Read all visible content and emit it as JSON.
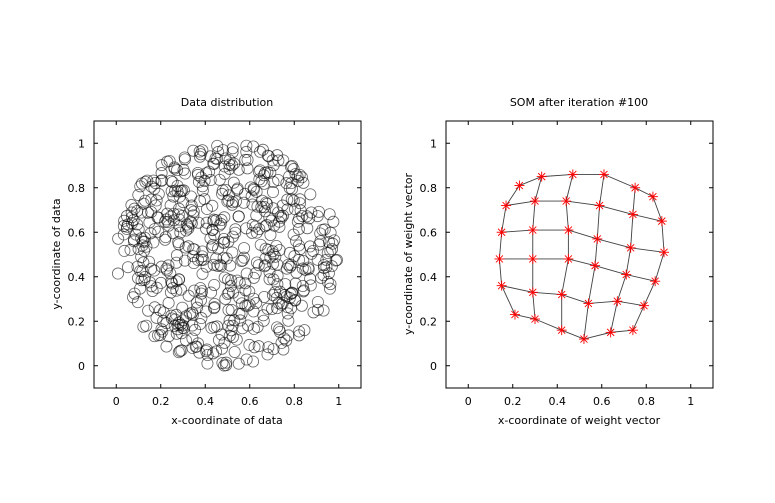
{
  "chart_data": [
    {
      "type": "scatter",
      "title": "Data distribution",
      "xlabel": "x-coordinate of data",
      "ylabel": "y-coordinate of data",
      "xlim": [
        -0.1,
        1.1
      ],
      "ylim": [
        -0.1,
        1.1
      ],
      "xticks": [
        "0",
        "0.2",
        "0.4",
        "0.6",
        "0.8",
        "1"
      ],
      "yticks": [
        "0",
        "0.2",
        "0.4",
        "0.6",
        "0.8",
        "1"
      ],
      "marker": "open-circle",
      "color": "#000000",
      "series": [
        {
          "name": "data",
          "distribution": "uniform disk",
          "center": [
            0.5,
            0.5
          ],
          "radius": 0.5,
          "n_points": 600
        }
      ]
    },
    {
      "type": "line",
      "title": "SOM after iteration #100",
      "xlabel": "x-coordinate of weight vector",
      "ylabel": "y-coordinate of weight vector",
      "xlim": [
        -0.1,
        1.1
      ],
      "ylim": [
        -0.1,
        1.1
      ],
      "xticks": [
        "0",
        "0.2",
        "0.4",
        "0.6",
        "0.8",
        "1"
      ],
      "yticks": [
        "0",
        "0.2",
        "0.4",
        "0.6",
        "0.8",
        "1"
      ],
      "marker": "asterisk",
      "marker_color": "#ff0000",
      "line_color": "#000000",
      "grid_rows": 6,
      "grid_cols": 6,
      "neurons": [
        [
          [
            0.21,
            0.23
          ],
          [
            0.3,
            0.21
          ],
          [
            0.42,
            0.16
          ],
          [
            0.52,
            0.12
          ],
          [
            0.64,
            0.15
          ],
          [
            0.74,
            0.16
          ]
        ],
        [
          [
            0.15,
            0.36
          ],
          [
            0.29,
            0.33
          ],
          [
            0.42,
            0.32
          ],
          [
            0.54,
            0.28
          ],
          [
            0.67,
            0.29
          ],
          [
            0.79,
            0.27
          ]
        ],
        [
          [
            0.14,
            0.48
          ],
          [
            0.29,
            0.48
          ],
          [
            0.45,
            0.48
          ],
          [
            0.57,
            0.45
          ],
          [
            0.71,
            0.41
          ],
          [
            0.84,
            0.38
          ]
        ],
        [
          [
            0.15,
            0.6
          ],
          [
            0.29,
            0.61
          ],
          [
            0.45,
            0.61
          ],
          [
            0.58,
            0.57
          ],
          [
            0.73,
            0.53
          ],
          [
            0.88,
            0.51
          ]
        ],
        [
          [
            0.17,
            0.72
          ],
          [
            0.3,
            0.74
          ],
          [
            0.44,
            0.74
          ],
          [
            0.59,
            0.72
          ],
          [
            0.74,
            0.68
          ],
          [
            0.87,
            0.65
          ]
        ],
        [
          [
            0.23,
            0.81
          ],
          [
            0.33,
            0.85
          ],
          [
            0.47,
            0.86
          ],
          [
            0.61,
            0.86
          ],
          [
            0.75,
            0.8
          ],
          [
            0.83,
            0.76
          ]
        ]
      ]
    }
  ]
}
